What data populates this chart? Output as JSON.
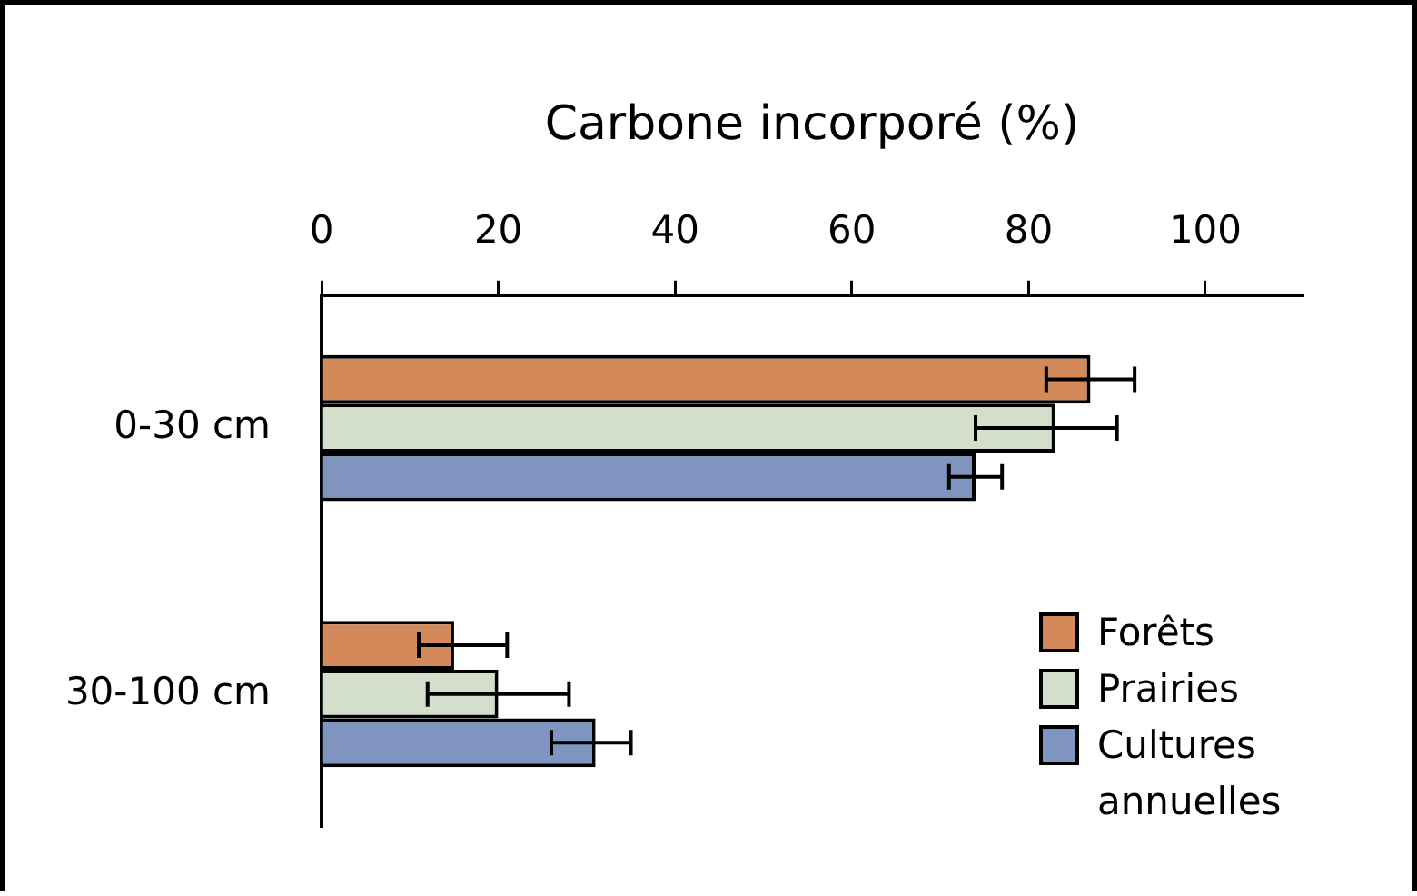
{
  "chart_data": {
    "type": "bar",
    "orientation": "horizontal",
    "xlabel": "Carbone incorporé (%)",
    "categories": [
      "0-30 cm",
      "30-100 cm"
    ],
    "series": [
      {
        "name": "Forêts",
        "color": "#d4895a",
        "values": [
          87,
          15
        ],
        "errors": [
          [
            82,
            92
          ],
          [
            11,
            21
          ]
        ]
      },
      {
        "name": "Prairies",
        "color": "#d3dfca",
        "values": [
          83,
          20
        ],
        "errors": [
          [
            74,
            90
          ],
          [
            12,
            28
          ]
        ]
      },
      {
        "name": "Cultures annuelles",
        "color": "#7f95bf",
        "values": [
          74,
          31
        ],
        "errors": [
          [
            71,
            77
          ],
          [
            26,
            35
          ]
        ]
      }
    ],
    "xlim": [
      0,
      111
    ],
    "xticks": [
      0,
      20,
      40,
      60,
      80,
      100
    ],
    "grid": false,
    "legend": "bottom right"
  }
}
